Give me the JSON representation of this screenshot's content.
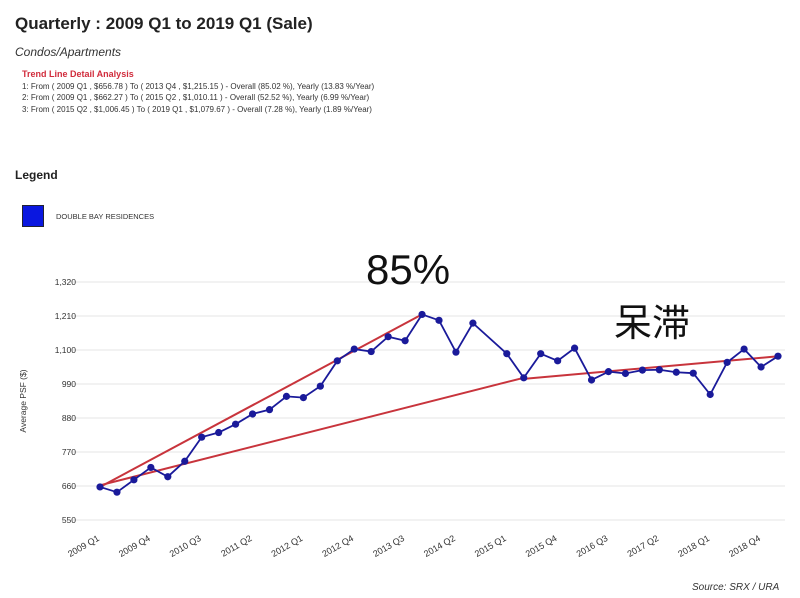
{
  "header": {
    "title": "Quarterly : 2009 Q1 to 2019 Q1 (Sale)",
    "subtitle": "Condos/Apartments"
  },
  "analysis": {
    "heading": "Trend Line Detail Analysis",
    "lines": [
      "1: From ( 2009 Q1 , $656.78 ) To ( 2013 Q4 , $1,215.15 ) - Overall (85.02 %), Yearly (13.83 %/Year)",
      "2: From ( 2009 Q1 , $662.27 ) To ( 2015 Q2 , $1,010.11 ) - Overall (52.52 %), Yearly (6.99 %/Year)",
      "3: From ( 2015 Q2 , $1,006.45 ) To ( 2019 Q1 , $1,079.67 ) - Overall (7.28 %), Yearly (1.89 %/Year)"
    ]
  },
  "legend": {
    "title": "Legend",
    "items": [
      {
        "label": "DOUBLE BAY RESIDENCES",
        "color": "#0a17e0"
      }
    ]
  },
  "annotations": {
    "growth": "85%",
    "stagnant": "呆滞"
  },
  "source": "Source: SRX / URA",
  "chart_data": {
    "type": "line",
    "ylabel": "Average PSF ($)",
    "ylim": [
      550,
      1320
    ],
    "yticks": [
      550,
      660,
      770,
      880,
      990,
      1100,
      1210,
      1320
    ],
    "x_categories": [
      "2009 Q1",
      "2009 Q2",
      "2009 Q3",
      "2009 Q4",
      "2010 Q1",
      "2010 Q2",
      "2010 Q3",
      "2010 Q4",
      "2011 Q1",
      "2011 Q2",
      "2011 Q3",
      "2011 Q4",
      "2012 Q1",
      "2012 Q2",
      "2012 Q3",
      "2012 Q4",
      "2013 Q1",
      "2013 Q2",
      "2013 Q3",
      "2013 Q4",
      "2014 Q1",
      "2014 Q2",
      "2014 Q3",
      "2014 Q4",
      "2015 Q1",
      "2015 Q2",
      "2015 Q3",
      "2015 Q4",
      "2016 Q1",
      "2016 Q2",
      "2016 Q3",
      "2016 Q4",
      "2017 Q1",
      "2017 Q2",
      "2017 Q3",
      "2017 Q4",
      "2018 Q1",
      "2018 Q2",
      "2018 Q3",
      "2018 Q4",
      "2019 Q1"
    ],
    "xtick_labels": [
      "2009 Q1",
      "2009 Q4",
      "2010 Q3",
      "2011 Q2",
      "2012 Q1",
      "2012 Q4",
      "2013 Q3",
      "2014 Q2",
      "2015 Q1",
      "2015 Q4",
      "2016 Q3",
      "2017 Q2",
      "2018 Q1",
      "2018 Q4"
    ],
    "series": [
      {
        "name": "DOUBLE BAY RESIDENCES",
        "color": "#1a1a9a",
        "values": [
          657,
          640,
          680,
          720,
          690,
          740,
          818,
          833,
          860,
          893,
          907,
          950,
          946,
          983,
          1065,
          1103,
          1095,
          1143,
          1130,
          1215,
          1196,
          1093,
          1187,
          null,
          1088,
          1010,
          1088,
          1065,
          1106,
          1003,
          1030,
          1024,
          1035,
          1036,
          1028,
          1025,
          956,
          1060,
          1103,
          1045,
          1080
        ]
      }
    ],
    "trend_lines": [
      {
        "label": "1",
        "from": [
          "2009 Q1",
          656.78
        ],
        "to": [
          "2013 Q4",
          1215.15
        ],
        "color": "#c8343c"
      },
      {
        "label": "2",
        "from": [
          "2009 Q1",
          662.27
        ],
        "to": [
          "2015 Q2",
          1010.11
        ],
        "color": "#c8343c"
      },
      {
        "label": "3",
        "from": [
          "2015 Q2",
          1006.45
        ],
        "to": [
          "2019 Q1",
          1079.67
        ],
        "color": "#c8343c"
      }
    ],
    "grid": true
  }
}
